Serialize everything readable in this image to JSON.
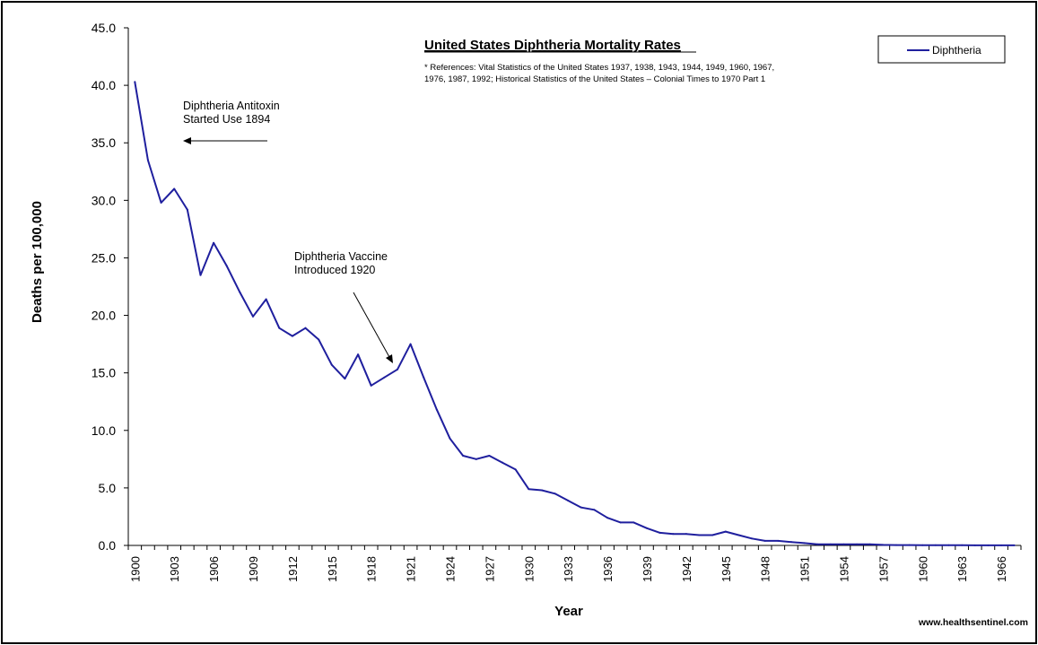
{
  "chart_data": {
    "type": "line",
    "title": "United States Diphtheria Mortality Rates",
    "references_line1": "* References: Vital Statistics of the United States 1937, 1938, 1943, 1944, 1949, 1960, 1967,",
    "references_line2": "1976, 1987, 1992; Historical Statistics of the United States – Colonial Times to 1970 Part 1",
    "xlabel": "Year",
    "ylabel": "Deaths per 100,000",
    "ylim": [
      0,
      45
    ],
    "y_ticks": [
      "0.0",
      "5.0",
      "10.0",
      "15.0",
      "20.0",
      "25.0",
      "30.0",
      "35.0",
      "40.0",
      "45.0"
    ],
    "x_ticks": [
      "1900",
      "1903",
      "1906",
      "1909",
      "1912",
      "1915",
      "1918",
      "1921",
      "1924",
      "1927",
      "1930",
      "1933",
      "1936",
      "1939",
      "1942",
      "1945",
      "1948",
      "1951",
      "1954",
      "1957",
      "1960",
      "1963",
      "1966"
    ],
    "x_start": 1900,
    "x_end": 1967,
    "legend": "Diphtheria",
    "legend_position": "top-right",
    "series": [
      {
        "name": "Diphtheria",
        "color": "#1f1f9e",
        "x": [
          1900,
          1901,
          1902,
          1903,
          1904,
          1905,
          1906,
          1907,
          1908,
          1909,
          1910,
          1911,
          1912,
          1913,
          1914,
          1915,
          1916,
          1917,
          1918,
          1919,
          1920,
          1921,
          1922,
          1923,
          1924,
          1925,
          1926,
          1927,
          1928,
          1929,
          1930,
          1931,
          1932,
          1933,
          1934,
          1935,
          1936,
          1937,
          1938,
          1939,
          1940,
          1941,
          1942,
          1943,
          1944,
          1945,
          1946,
          1947,
          1948,
          1949,
          1950,
          1951,
          1952,
          1953,
          1954,
          1955,
          1956,
          1957,
          1958,
          1959,
          1960,
          1961,
          1962,
          1963,
          1964,
          1965,
          1966,
          1967
        ],
        "values": [
          40.3,
          33.5,
          29.8,
          31.0,
          29.2,
          23.5,
          26.3,
          24.3,
          22.0,
          19.9,
          21.4,
          18.9,
          18.2,
          18.9,
          17.9,
          15.7,
          14.5,
          16.6,
          13.9,
          14.6,
          15.3,
          17.5,
          14.6,
          11.8,
          9.3,
          7.8,
          7.5,
          7.8,
          7.2,
          6.6,
          4.9,
          4.8,
          4.5,
          3.9,
          3.3,
          3.1,
          2.4,
          2.0,
          2.0,
          1.5,
          1.1,
          1.0,
          1.0,
          0.9,
          0.9,
          1.2,
          0.9,
          0.6,
          0.4,
          0.4,
          0.3,
          0.2,
          0.1,
          0.1,
          0.1,
          0.1,
          0.1,
          0.05,
          0.03,
          0.03,
          0.02,
          0.02,
          0.02,
          0.02,
          0.01,
          0.01,
          0.01,
          0.01
        ]
      }
    ],
    "annotations": [
      {
        "line1": "Diphtheria Antitoxin",
        "line2": "Started Use 1894"
      },
      {
        "line1": "Diphtheria Vaccine",
        "line2": "Introduced 1920"
      }
    ]
  },
  "credit": "www.healthsentinel.com"
}
